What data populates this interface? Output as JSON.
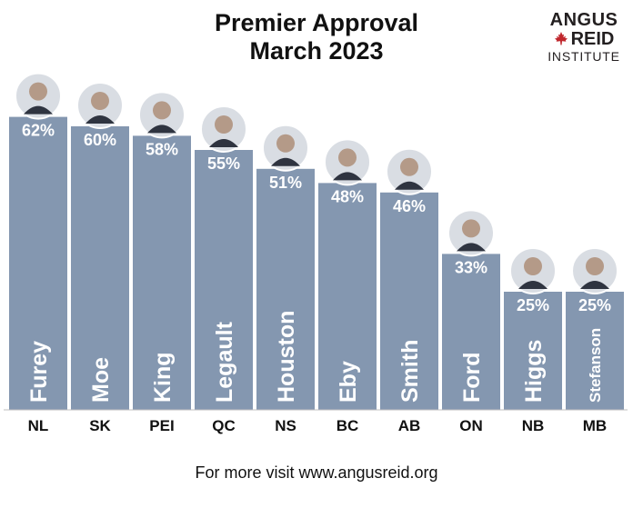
{
  "title_line1": "Premier Approval",
  "title_line2": "March 2023",
  "logo": {
    "line1": "ANGUS",
    "line2": "REID",
    "line3": "INSTITUTE"
  },
  "footer": "For more visit www.angusreid.org",
  "colors": {
    "bar": "#8497b0",
    "label": "#ffffff",
    "logo_leaf": "#c0272d"
  },
  "chart_data": {
    "type": "bar",
    "categories": [
      "NL",
      "SK",
      "PEI",
      "QC",
      "NS",
      "BC",
      "AB",
      "ON",
      "NB",
      "MB"
    ],
    "names": [
      "Furey",
      "Moe",
      "King",
      "Legault",
      "Houston",
      "Eby",
      "Smith",
      "Ford",
      "Higgs",
      "Stefanson"
    ],
    "values": [
      62,
      60,
      58,
      55,
      51,
      48,
      46,
      33,
      25,
      25
    ],
    "value_labels": [
      "62%",
      "60%",
      "58%",
      "55%",
      "51%",
      "48%",
      "46%",
      "33%",
      "25%",
      "25%"
    ],
    "ylim": [
      0,
      100
    ],
    "title": "Premier Approval March 2023",
    "xlabel": "",
    "ylabel": "",
    "legend": "none",
    "grid": false
  }
}
